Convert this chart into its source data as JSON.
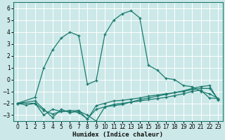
{
  "xlabel": "Humidex (Indice chaleur)",
  "bg_color": "#cce8e8",
  "line_color": "#1a7a6e",
  "grid_color": "#ffffff",
  "xlim": [
    -0.5,
    23.5
  ],
  "ylim": [
    -3.5,
    6.5
  ],
  "yticks": [
    -3,
    -2,
    -1,
    0,
    1,
    2,
    3,
    4,
    5,
    6
  ],
  "xticks": [
    0,
    1,
    2,
    3,
    4,
    5,
    6,
    7,
    8,
    9,
    10,
    11,
    12,
    13,
    14,
    15,
    16,
    17,
    18,
    19,
    20,
    21,
    22,
    23
  ],
  "series": [
    {
      "x": [
        0,
        2,
        3,
        4,
        5,
        6,
        7,
        8,
        9,
        10,
        11,
        12,
        13,
        14,
        15,
        16,
        17,
        18,
        19,
        20,
        21,
        22,
        23
      ],
      "y": [
        -2.0,
        -1.5,
        1.0,
        2.5,
        3.5,
        4.0,
        3.7,
        -0.4,
        -0.1,
        3.8,
        5.0,
        5.55,
        5.8,
        5.2,
        1.2,
        0.8,
        0.1,
        0.0,
        -0.5,
        -0.6,
        -1.0,
        -1.2,
        -1.6
      ]
    },
    {
      "x": [
        0,
        1,
        2,
        3,
        4,
        5,
        6,
        7,
        8,
        9,
        10,
        11,
        12,
        13,
        14,
        15,
        16,
        17,
        18,
        19,
        20,
        21,
        22,
        23
      ],
      "y": [
        -2.0,
        -2.15,
        -2.0,
        -3.0,
        -2.5,
        -2.7,
        -2.6,
        -2.8,
        -3.3,
        -2.5,
        -2.3,
        -2.2,
        -2.1,
        -1.9,
        -1.8,
        -1.7,
        -1.6,
        -1.5,
        -1.35,
        -1.2,
        -1.0,
        -0.9,
        -1.55,
        -1.6
      ]
    },
    {
      "x": [
        0,
        2,
        3,
        4,
        5,
        6,
        7,
        8,
        9,
        10,
        11,
        12,
        13,
        14,
        15,
        16,
        17,
        18,
        19,
        20,
        21,
        22,
        23
      ],
      "y": [
        -2.0,
        -2.0,
        -2.6,
        -2.9,
        -2.7,
        -2.65,
        -2.6,
        -3.35,
        -2.2,
        -2.0,
        -1.8,
        -1.75,
        -1.65,
        -1.55,
        -1.4,
        -1.3,
        -1.2,
        -1.1,
        -1.0,
        -0.85,
        -0.75,
        -0.75,
        -1.65
      ]
    },
    {
      "x": [
        0,
        2,
        3,
        4,
        5,
        6,
        7,
        8,
        9,
        10,
        11,
        12,
        13,
        14,
        15,
        16,
        17,
        18,
        19,
        20,
        21,
        22,
        23
      ],
      "y": [
        -2.0,
        -1.8,
        -2.5,
        -3.2,
        -2.5,
        -2.8,
        -2.65,
        -3.0,
        -3.5,
        -2.3,
        -2.1,
        -2.0,
        -1.9,
        -1.7,
        -1.55,
        -1.4,
        -1.25,
        -1.1,
        -0.95,
        -0.75,
        -0.6,
        -0.5,
        -1.75
      ]
    }
  ]
}
